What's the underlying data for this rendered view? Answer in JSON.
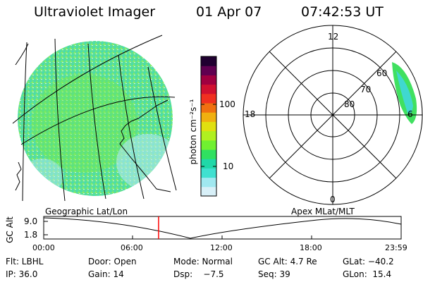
{
  "header": {
    "instrument": "Ultraviolet Imager",
    "date": "01 Apr 07",
    "time": "07:42:53 UT"
  },
  "colorbar": {
    "unit_label": "photon cm⁻²s⁻¹",
    "ticks": [
      "100",
      "10"
    ],
    "colors": [
      "#d8f0f8",
      "#a0e8f0",
      "#40e0d0",
      "#20d8a8",
      "#30e060",
      "#70f030",
      "#b0f020",
      "#e0e010",
      "#f0b010",
      "#f07010",
      "#f03020",
      "#d01030",
      "#a00040",
      "#600050",
      "#200030"
    ]
  },
  "polar": {
    "mlt_labels": {
      "top": "12",
      "left": "18",
      "right": "6",
      "bottom": "0"
    },
    "lat_labels": [
      "60",
      "70",
      "80"
    ]
  },
  "timeline": {
    "left_label": "Geographic Lat/Lon",
    "right_label": "Apex MLat/MLT",
    "ylabel": "GC Alt",
    "y_ticks": [
      "9.0",
      "1.8"
    ],
    "x_ticks": [
      "00:00",
      "06:00",
      "12:00",
      "18:00",
      "23:59"
    ],
    "current_fraction": 0.3214
  },
  "footer": {
    "row1": [
      "Flt: LBHL",
      "Door: Open",
      "Mode: Normal",
      "GC Alt: 4.7 Re",
      "GLat: −40.2"
    ],
    "row2": [
      "IP: 36.0",
      "Gain: 14",
      "Dsp:    −7.5",
      "Seq: 39",
      "GLon:  15.4"
    ]
  },
  "colors": {
    "marker": "#ff0000",
    "aurora_green": "#40e060",
    "aurora_cyan": "#40d8d0"
  }
}
